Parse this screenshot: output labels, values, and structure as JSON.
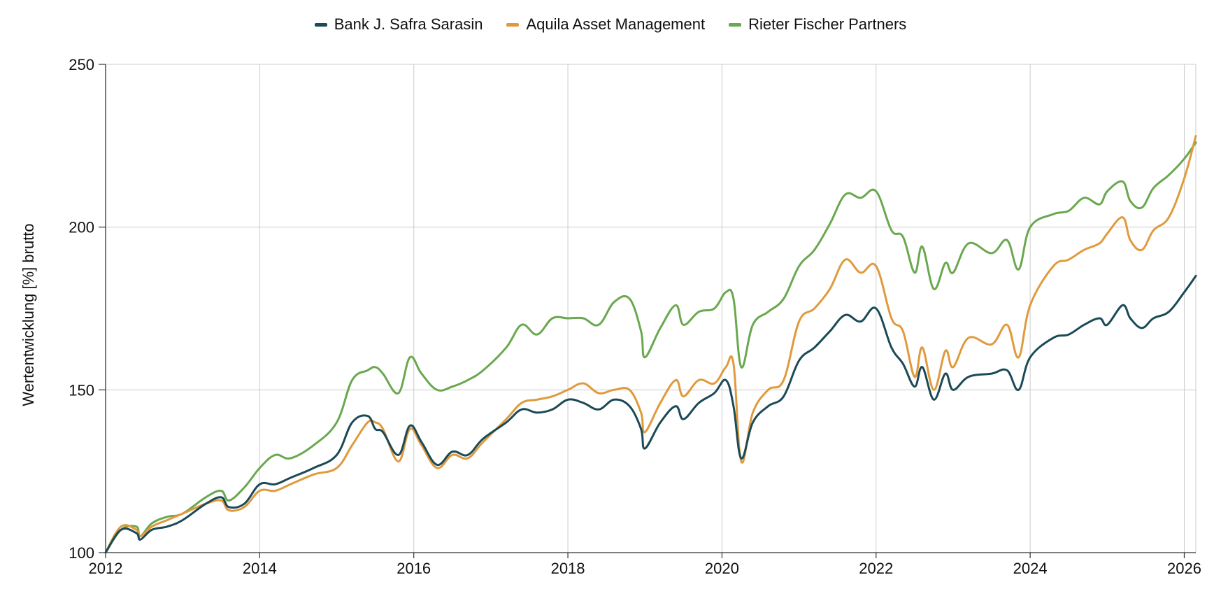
{
  "chart_data": {
    "type": "line",
    "title": "",
    "xlabel": "",
    "ylabel": "Wertentwicklung [%] brutto",
    "xlim": [
      2012,
      2026.15
    ],
    "ylim": [
      100,
      250
    ],
    "xticks": [
      2012,
      2014,
      2016,
      2018,
      2020,
      2022,
      2024,
      2026
    ],
    "xtick_labels": [
      "2012",
      "2014",
      "2016",
      "2018",
      "2020",
      "2022",
      "2024",
      "2026"
    ],
    "yticks": [
      100,
      150,
      200,
      250
    ],
    "ytick_labels": [
      "100",
      "150",
      "200",
      "250"
    ],
    "grid": true,
    "legend_position": "top-center",
    "series": [
      {
        "name": "Bank J. Safra Sarasin",
        "color": "#1b4a57",
        "points": [
          [
            2012,
            100
          ],
          [
            2012.2,
            107
          ],
          [
            2012.4,
            106
          ],
          [
            2012.45,
            104
          ],
          [
            2012.6,
            107
          ],
          [
            2012.8,
            108
          ],
          [
            2013.0,
            110
          ],
          [
            2013.3,
            115
          ],
          [
            2013.5,
            117
          ],
          [
            2013.6,
            114
          ],
          [
            2013.8,
            115
          ],
          [
            2014.0,
            121
          ],
          [
            2014.2,
            121
          ],
          [
            2014.4,
            123
          ],
          [
            2014.7,
            126
          ],
          [
            2015.0,
            130
          ],
          [
            2015.2,
            140
          ],
          [
            2015.4,
            142
          ],
          [
            2015.5,
            138
          ],
          [
            2015.6,
            137
          ],
          [
            2015.8,
            130
          ],
          [
            2015.95,
            139
          ],
          [
            2016.1,
            134
          ],
          [
            2016.3,
            127
          ],
          [
            2016.5,
            131
          ],
          [
            2016.7,
            130
          ],
          [
            2016.9,
            135
          ],
          [
            2017.2,
            140
          ],
          [
            2017.4,
            144
          ],
          [
            2017.6,
            143
          ],
          [
            2017.8,
            144
          ],
          [
            2018.0,
            147
          ],
          [
            2018.2,
            146
          ],
          [
            2018.4,
            144
          ],
          [
            2018.6,
            147
          ],
          [
            2018.8,
            145
          ],
          [
            2018.95,
            138
          ],
          [
            2019.0,
            132
          ],
          [
            2019.2,
            140
          ],
          [
            2019.4,
            145
          ],
          [
            2019.5,
            141
          ],
          [
            2019.7,
            146
          ],
          [
            2019.9,
            149
          ],
          [
            2020.05,
            153
          ],
          [
            2020.15,
            145
          ],
          [
            2020.25,
            129
          ],
          [
            2020.4,
            140
          ],
          [
            2020.6,
            145
          ],
          [
            2020.8,
            148
          ],
          [
            2021.0,
            159
          ],
          [
            2021.2,
            163
          ],
          [
            2021.4,
            168
          ],
          [
            2021.6,
            173
          ],
          [
            2021.8,
            171
          ],
          [
            2022.0,
            175
          ],
          [
            2022.2,
            163
          ],
          [
            2022.35,
            158
          ],
          [
            2022.5,
            151
          ],
          [
            2022.6,
            157
          ],
          [
            2022.75,
            147
          ],
          [
            2022.9,
            155
          ],
          [
            2023.0,
            150
          ],
          [
            2023.2,
            154
          ],
          [
            2023.5,
            155
          ],
          [
            2023.7,
            156
          ],
          [
            2023.85,
            150
          ],
          [
            2024.0,
            160
          ],
          [
            2024.3,
            166
          ],
          [
            2024.5,
            167
          ],
          [
            2024.7,
            170
          ],
          [
            2024.9,
            172
          ],
          [
            2025.0,
            170
          ],
          [
            2025.2,
            176
          ],
          [
            2025.3,
            172
          ],
          [
            2025.45,
            169
          ],
          [
            2025.6,
            172
          ],
          [
            2025.8,
            174
          ],
          [
            2026.0,
            180
          ],
          [
            2026.15,
            185
          ]
        ]
      },
      {
        "name": "Aquila Asset Management",
        "color": "#e09a3d",
        "points": [
          [
            2012,
            100
          ],
          [
            2012.2,
            108
          ],
          [
            2012.4,
            107
          ],
          [
            2012.45,
            105
          ],
          [
            2012.6,
            108
          ],
          [
            2012.8,
            110
          ],
          [
            2013.0,
            112
          ],
          [
            2013.3,
            115
          ],
          [
            2013.5,
            116
          ],
          [
            2013.6,
            113
          ],
          [
            2013.8,
            114
          ],
          [
            2014.0,
            119
          ],
          [
            2014.2,
            119
          ],
          [
            2014.4,
            121
          ],
          [
            2014.7,
            124
          ],
          [
            2015.0,
            126
          ],
          [
            2015.2,
            133
          ],
          [
            2015.4,
            140
          ],
          [
            2015.5,
            140
          ],
          [
            2015.6,
            138
          ],
          [
            2015.8,
            128
          ],
          [
            2015.95,
            138
          ],
          [
            2016.1,
            133
          ],
          [
            2016.3,
            126
          ],
          [
            2016.5,
            130
          ],
          [
            2016.7,
            129
          ],
          [
            2016.9,
            134
          ],
          [
            2017.2,
            141
          ],
          [
            2017.4,
            146
          ],
          [
            2017.6,
            147
          ],
          [
            2017.8,
            148
          ],
          [
            2018.0,
            150
          ],
          [
            2018.2,
            152
          ],
          [
            2018.4,
            149
          ],
          [
            2018.6,
            150
          ],
          [
            2018.8,
            150
          ],
          [
            2018.95,
            143
          ],
          [
            2019.0,
            137
          ],
          [
            2019.2,
            146
          ],
          [
            2019.4,
            153
          ],
          [
            2019.5,
            148
          ],
          [
            2019.7,
            153
          ],
          [
            2019.9,
            152
          ],
          [
            2020.05,
            157
          ],
          [
            2020.15,
            158
          ],
          [
            2020.25,
            128
          ],
          [
            2020.4,
            143
          ],
          [
            2020.6,
            150
          ],
          [
            2020.8,
            153
          ],
          [
            2021.0,
            171
          ],
          [
            2021.2,
            175
          ],
          [
            2021.4,
            181
          ],
          [
            2021.6,
            190
          ],
          [
            2021.8,
            186
          ],
          [
            2022.0,
            188
          ],
          [
            2022.2,
            172
          ],
          [
            2022.35,
            168
          ],
          [
            2022.5,
            154
          ],
          [
            2022.6,
            163
          ],
          [
            2022.75,
            150
          ],
          [
            2022.9,
            162
          ],
          [
            2023.0,
            157
          ],
          [
            2023.2,
            166
          ],
          [
            2023.5,
            164
          ],
          [
            2023.7,
            170
          ],
          [
            2023.85,
            160
          ],
          [
            2024.0,
            176
          ],
          [
            2024.3,
            188
          ],
          [
            2024.5,
            190
          ],
          [
            2024.7,
            193
          ],
          [
            2024.9,
            195
          ],
          [
            2025.0,
            198
          ],
          [
            2025.2,
            203
          ],
          [
            2025.3,
            196
          ],
          [
            2025.45,
            193
          ],
          [
            2025.6,
            199
          ],
          [
            2025.8,
            203
          ],
          [
            2026.0,
            215
          ],
          [
            2026.15,
            228
          ]
        ]
      },
      {
        "name": "Rieter Fischer Partners",
        "color": "#6aa84f",
        "points": [
          [
            2012,
            100
          ],
          [
            2012.2,
            107
          ],
          [
            2012.4,
            108
          ],
          [
            2012.45,
            105
          ],
          [
            2012.6,
            109
          ],
          [
            2012.8,
            111
          ],
          [
            2013.0,
            112
          ],
          [
            2013.3,
            117
          ],
          [
            2013.5,
            119
          ],
          [
            2013.6,
            116
          ],
          [
            2013.8,
            120
          ],
          [
            2014.0,
            126
          ],
          [
            2014.2,
            130
          ],
          [
            2014.4,
            129
          ],
          [
            2014.7,
            133
          ],
          [
            2015.0,
            140
          ],
          [
            2015.2,
            153
          ],
          [
            2015.4,
            156
          ],
          [
            2015.5,
            157
          ],
          [
            2015.6,
            155
          ],
          [
            2015.8,
            149
          ],
          [
            2015.95,
            160
          ],
          [
            2016.1,
            155
          ],
          [
            2016.3,
            150
          ],
          [
            2016.5,
            151
          ],
          [
            2016.7,
            153
          ],
          [
            2016.9,
            156
          ],
          [
            2017.2,
            163
          ],
          [
            2017.4,
            170
          ],
          [
            2017.6,
            167
          ],
          [
            2017.8,
            172
          ],
          [
            2018.0,
            172
          ],
          [
            2018.2,
            172
          ],
          [
            2018.4,
            170
          ],
          [
            2018.6,
            177
          ],
          [
            2018.8,
            178
          ],
          [
            2018.95,
            168
          ],
          [
            2019.0,
            160
          ],
          [
            2019.2,
            169
          ],
          [
            2019.4,
            176
          ],
          [
            2019.5,
            170
          ],
          [
            2019.7,
            174
          ],
          [
            2019.9,
            175
          ],
          [
            2020.05,
            180
          ],
          [
            2020.15,
            178
          ],
          [
            2020.25,
            157
          ],
          [
            2020.4,
            170
          ],
          [
            2020.6,
            174
          ],
          [
            2020.8,
            178
          ],
          [
            2021.0,
            188
          ],
          [
            2021.2,
            193
          ],
          [
            2021.4,
            201
          ],
          [
            2021.6,
            210
          ],
          [
            2021.8,
            209
          ],
          [
            2022.0,
            211
          ],
          [
            2022.2,
            199
          ],
          [
            2022.35,
            197
          ],
          [
            2022.5,
            186
          ],
          [
            2022.6,
            194
          ],
          [
            2022.75,
            181
          ],
          [
            2022.9,
            189
          ],
          [
            2023.0,
            186
          ],
          [
            2023.2,
            195
          ],
          [
            2023.5,
            192
          ],
          [
            2023.7,
            196
          ],
          [
            2023.85,
            187
          ],
          [
            2024.0,
            200
          ],
          [
            2024.3,
            204
          ],
          [
            2024.5,
            205
          ],
          [
            2024.7,
            209
          ],
          [
            2024.9,
            207
          ],
          [
            2025.0,
            211
          ],
          [
            2025.2,
            214
          ],
          [
            2025.3,
            208
          ],
          [
            2025.45,
            206
          ],
          [
            2025.6,
            212
          ],
          [
            2025.8,
            216
          ],
          [
            2026.0,
            221
          ],
          [
            2026.15,
            226
          ]
        ]
      }
    ]
  }
}
